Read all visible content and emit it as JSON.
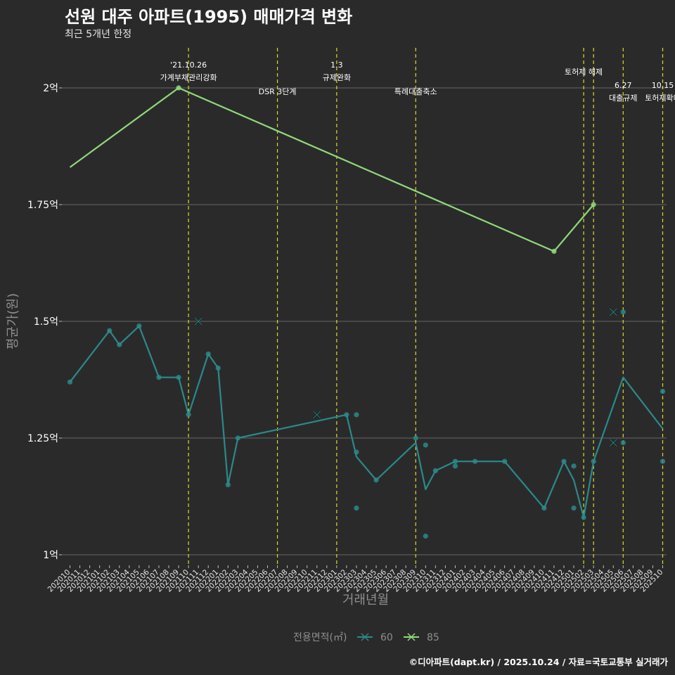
{
  "chart_data": {
    "type": "line",
    "title": "선원 대주 아파트(1995) 매매가격 변화",
    "subtitle": "최근 5개년 한정",
    "xlabel": "거래년월",
    "ylabel": "평균가(원)",
    "ylim": [
      1.0,
      2.0
    ],
    "yticks": [
      {
        "value": 1.0,
        "label": "1억"
      },
      {
        "value": 1.25,
        "label": "1.25억"
      },
      {
        "value": 1.5,
        "label": "1.5억"
      },
      {
        "value": 1.75,
        "label": "1.75억"
      },
      {
        "value": 2.0,
        "label": "2억"
      }
    ],
    "months": [
      "202010",
      "202011",
      "202012",
      "202101",
      "202102",
      "202103",
      "202104",
      "202105",
      "202106",
      "202107",
      "202108",
      "202109",
      "202110",
      "202111",
      "202112",
      "202201",
      "202202",
      "202203",
      "202204",
      "202205",
      "202206",
      "202207",
      "202208",
      "202209",
      "202210",
      "202211",
      "202212",
      "202301",
      "202302",
      "202303",
      "202304",
      "202305",
      "202306",
      "202307",
      "202308",
      "202309",
      "202310",
      "202311",
      "202312",
      "202401",
      "202402",
      "202403",
      "202404",
      "202405",
      "202406",
      "202407",
      "202408",
      "202409",
      "202410",
      "202411",
      "202412",
      "202501",
      "202502",
      "202503",
      "202504",
      "202505",
      "202506",
      "202507",
      "202508",
      "202509",
      "202510"
    ],
    "legend": {
      "title": "전용면적(㎡)",
      "position": "bottom"
    },
    "series": [
      {
        "name": "60",
        "color": "#2a8a8a",
        "line": [
          [
            "202010",
            1.37
          ],
          [
            "202102",
            1.48
          ],
          [
            "202103",
            1.45
          ],
          [
            "202105",
            1.49
          ],
          [
            "202107",
            1.38
          ],
          [
            "202109",
            1.38
          ],
          [
            "202110",
            1.3
          ],
          [
            "202112",
            1.43
          ],
          [
            "202201",
            1.4
          ],
          [
            "202202",
            1.15
          ],
          [
            "202203",
            1.25
          ],
          [
            "202302",
            1.3
          ],
          [
            "202303",
            1.21
          ],
          [
            "202305",
            1.16
          ],
          [
            "202309",
            1.24
          ],
          [
            "202310",
            1.14
          ],
          [
            "202311",
            1.18
          ],
          [
            "202401",
            1.2
          ],
          [
            "202403",
            1.2
          ],
          [
            "202406",
            1.2
          ],
          [
            "202410",
            1.1
          ],
          [
            "202412",
            1.2
          ],
          [
            "202501",
            1.16
          ],
          [
            "202502",
            1.08
          ],
          [
            "202503",
            1.2
          ],
          [
            "202506",
            1.38
          ],
          [
            "202510",
            1.27
          ]
        ],
        "points": [
          [
            "202010",
            1.37
          ],
          [
            "202102",
            1.48
          ],
          [
            "202103",
            1.45
          ],
          [
            "202105",
            1.49
          ],
          [
            "202107",
            1.38
          ],
          [
            "202109",
            1.38
          ],
          [
            "202110",
            1.3
          ],
          [
            "202112",
            1.43
          ],
          [
            "202201",
            1.4
          ],
          [
            "202202",
            1.15
          ],
          [
            "202203",
            1.25
          ],
          [
            "202302",
            1.3
          ],
          [
            "202303",
            1.3
          ],
          [
            "202303",
            1.22
          ],
          [
            "202303",
            1.1
          ],
          [
            "202305",
            1.16
          ],
          [
            "202309",
            1.25
          ],
          [
            "202310",
            1.235
          ],
          [
            "202310",
            1.04
          ],
          [
            "202311",
            1.18
          ],
          [
            "202401",
            1.2
          ],
          [
            "202401",
            1.19
          ],
          [
            "202403",
            1.2
          ],
          [
            "202406",
            1.2
          ],
          [
            "202410",
            1.1
          ],
          [
            "202412",
            1.2
          ],
          [
            "202501",
            1.19
          ],
          [
            "202501",
            1.1
          ],
          [
            "202502",
            1.08
          ],
          [
            "202503",
            1.2
          ],
          [
            "202506",
            1.52
          ],
          [
            "202506",
            1.24
          ],
          [
            "202510",
            1.35
          ],
          [
            "202510",
            1.2
          ]
        ],
        "cancelled": [
          [
            "202111",
            1.5
          ],
          [
            "202211",
            1.3
          ],
          [
            "202505",
            1.52
          ],
          [
            "202505",
            1.24
          ]
        ]
      },
      {
        "name": "85",
        "color": "#90d97a",
        "line": [
          [
            "202010",
            1.83
          ],
          [
            "202109",
            2.0
          ],
          [
            "202411",
            1.65
          ],
          [
            "202503",
            1.75
          ]
        ],
        "points": [
          [
            "202109",
            2.0
          ],
          [
            "202411",
            1.65
          ],
          [
            "202503",
            1.75
          ]
        ],
        "cancelled": []
      }
    ],
    "events": [
      {
        "month": "202110",
        "date": "'21.10.26",
        "label": "가계부채관리강화"
      },
      {
        "month": "202207",
        "date": "",
        "label": "DSR 3단계"
      },
      {
        "month": "202301",
        "date": "1.3",
        "label": "규제완화"
      },
      {
        "month": "202309",
        "date": "",
        "label": "특례대출축소"
      },
      {
        "month": "202502",
        "date": "",
        "label": "토허제 해제"
      },
      {
        "month": "202503",
        "date": "",
        "label": ""
      },
      {
        "month": "202506",
        "date": "6.27",
        "label": "대출규제"
      },
      {
        "month": "202510",
        "date": "10.15",
        "label": "토허제확대"
      }
    ],
    "caption": "©디아파트(dapt.kr) / 2025.10.24 / 자료=국토교통부 실거래가"
  }
}
